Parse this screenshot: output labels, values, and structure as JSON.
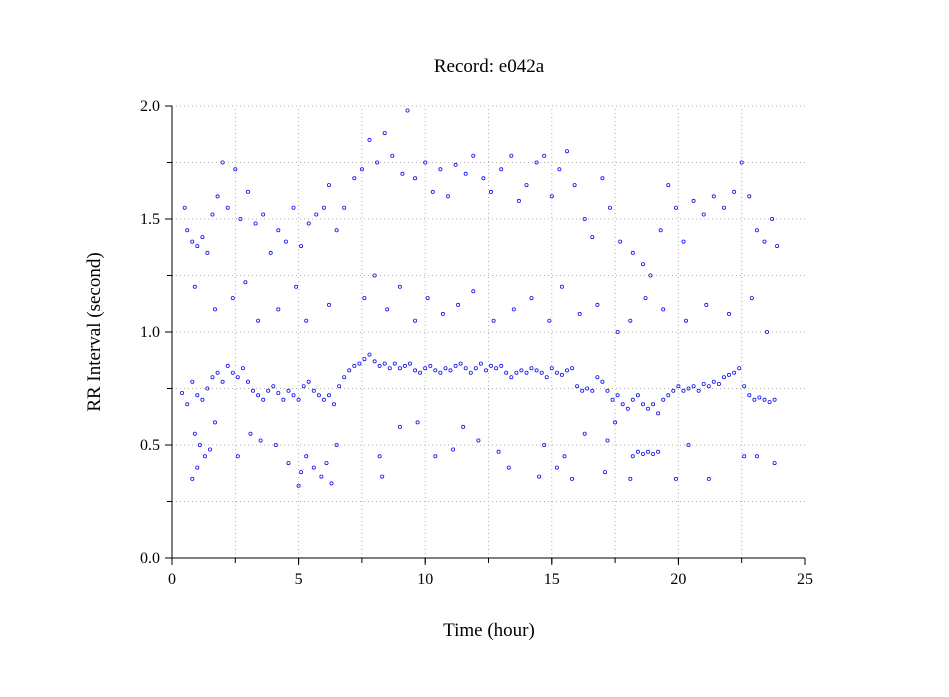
{
  "chart_data": {
    "type": "scatter",
    "title": "Record:  e042a",
    "xlabel": "Time (hour)",
    "ylabel": "RR Interval (second)",
    "xlim": [
      0,
      25
    ],
    "ylim": [
      0.0,
      2.0
    ],
    "xticks": [
      0,
      5,
      10,
      15,
      20,
      25
    ],
    "xtick_labels": [
      "0",
      "5",
      "10",
      "15",
      "20",
      "25"
    ],
    "yticks": [
      0.0,
      0.5,
      1.0,
      1.5,
      2.0
    ],
    "ytick_labels": [
      "0.0",
      "0.5",
      "1.0",
      "1.5",
      "2.0"
    ],
    "grid": true,
    "marker_color": "#1010ee",
    "series": [
      {
        "values": [
          [
            0.4,
            0.73
          ],
          [
            0.6,
            0.68
          ],
          [
            0.8,
            0.78
          ],
          [
            1.0,
            0.72
          ],
          [
            1.2,
            0.7
          ],
          [
            1.4,
            0.75
          ],
          [
            1.6,
            0.8
          ],
          [
            1.8,
            0.82
          ],
          [
            2.0,
            0.78
          ],
          [
            2.2,
            0.85
          ],
          [
            2.4,
            0.82
          ],
          [
            2.6,
            0.8
          ],
          [
            2.8,
            0.84
          ],
          [
            3.0,
            0.78
          ],
          [
            3.2,
            0.74
          ],
          [
            3.4,
            0.72
          ],
          [
            3.6,
            0.7
          ],
          [
            3.8,
            0.74
          ],
          [
            4.0,
            0.76
          ],
          [
            4.2,
            0.73
          ],
          [
            4.4,
            0.7
          ],
          [
            4.6,
            0.74
          ],
          [
            4.8,
            0.72
          ],
          [
            5.0,
            0.7
          ],
          [
            5.2,
            0.76
          ],
          [
            5.4,
            0.78
          ],
          [
            5.6,
            0.74
          ],
          [
            5.8,
            0.72
          ],
          [
            6.0,
            0.7
          ],
          [
            6.2,
            0.72
          ],
          [
            6.4,
            0.68
          ],
          [
            6.6,
            0.76
          ],
          [
            6.8,
            0.8
          ],
          [
            7.0,
            0.83
          ],
          [
            7.2,
            0.85
          ],
          [
            7.4,
            0.86
          ],
          [
            7.6,
            0.88
          ],
          [
            7.8,
            0.9
          ],
          [
            8.0,
            0.87
          ],
          [
            8.2,
            0.85
          ],
          [
            8.4,
            0.86
          ],
          [
            8.6,
            0.84
          ],
          [
            8.8,
            0.86
          ],
          [
            9.0,
            0.84
          ],
          [
            9.2,
            0.85
          ],
          [
            9.4,
            0.86
          ],
          [
            9.6,
            0.83
          ],
          [
            9.8,
            0.82
          ],
          [
            10.0,
            0.84
          ],
          [
            10.2,
            0.85
          ],
          [
            10.4,
            0.83
          ],
          [
            10.6,
            0.82
          ],
          [
            10.8,
            0.84
          ],
          [
            11.0,
            0.83
          ],
          [
            11.2,
            0.85
          ],
          [
            11.4,
            0.86
          ],
          [
            11.6,
            0.84
          ],
          [
            11.8,
            0.82
          ],
          [
            12.0,
            0.84
          ],
          [
            12.2,
            0.86
          ],
          [
            12.4,
            0.83
          ],
          [
            12.6,
            0.85
          ],
          [
            12.8,
            0.84
          ],
          [
            13.0,
            0.85
          ],
          [
            13.2,
            0.82
          ],
          [
            13.4,
            0.8
          ],
          [
            13.6,
            0.82
          ],
          [
            13.8,
            0.83
          ],
          [
            14.0,
            0.82
          ],
          [
            14.2,
            0.84
          ],
          [
            14.4,
            0.83
          ],
          [
            14.6,
            0.82
          ],
          [
            14.8,
            0.8
          ],
          [
            15.0,
            0.84
          ],
          [
            15.2,
            0.82
          ],
          [
            15.4,
            0.81
          ],
          [
            15.6,
            0.83
          ],
          [
            15.8,
            0.84
          ],
          [
            16.0,
            0.76
          ],
          [
            16.2,
            0.74
          ],
          [
            16.4,
            0.75
          ],
          [
            16.6,
            0.74
          ],
          [
            16.8,
            0.8
          ],
          [
            17.0,
            0.78
          ],
          [
            17.2,
            0.74
          ],
          [
            17.4,
            0.7
          ],
          [
            17.6,
            0.72
          ],
          [
            17.8,
            0.68
          ],
          [
            18.0,
            0.66
          ],
          [
            18.2,
            0.7
          ],
          [
            18.4,
            0.72
          ],
          [
            18.6,
            0.68
          ],
          [
            18.8,
            0.66
          ],
          [
            19.0,
            0.68
          ],
          [
            19.2,
            0.64
          ],
          [
            19.4,
            0.7
          ],
          [
            19.6,
            0.72
          ],
          [
            19.8,
            0.74
          ],
          [
            20.0,
            0.76
          ],
          [
            20.2,
            0.74
          ],
          [
            20.4,
            0.75
          ],
          [
            20.6,
            0.76
          ],
          [
            20.8,
            0.74
          ],
          [
            21.0,
            0.77
          ],
          [
            21.2,
            0.76
          ],
          [
            21.4,
            0.78
          ],
          [
            21.6,
            0.77
          ],
          [
            21.8,
            0.8
          ],
          [
            22.0,
            0.81
          ],
          [
            22.2,
            0.82
          ],
          [
            22.4,
            0.84
          ],
          [
            22.6,
            0.76
          ],
          [
            22.8,
            0.72
          ],
          [
            23.0,
            0.7
          ],
          [
            23.2,
            0.71
          ],
          [
            23.4,
            0.7
          ],
          [
            23.6,
            0.69
          ],
          [
            23.8,
            0.7
          ],
          [
            0.9,
            0.55
          ],
          [
            1.1,
            0.5
          ],
          [
            1.3,
            0.45
          ],
          [
            0.8,
            0.35
          ],
          [
            1.0,
            0.4
          ],
          [
            1.5,
            0.48
          ],
          [
            1.7,
            0.6
          ],
          [
            2.6,
            0.45
          ],
          [
            3.1,
            0.55
          ],
          [
            3.5,
            0.52
          ],
          [
            4.1,
            0.5
          ],
          [
            4.6,
            0.42
          ],
          [
            5.0,
            0.32
          ],
          [
            5.1,
            0.38
          ],
          [
            5.3,
            0.45
          ],
          [
            5.6,
            0.4
          ],
          [
            5.9,
            0.36
          ],
          [
            6.1,
            0.42
          ],
          [
            6.3,
            0.33
          ],
          [
            6.5,
            0.5
          ],
          [
            8.2,
            0.45
          ],
          [
            8.3,
            0.36
          ],
          [
            9.0,
            0.58
          ],
          [
            9.7,
            0.6
          ],
          [
            10.4,
            0.45
          ],
          [
            11.1,
            0.48
          ],
          [
            11.5,
            0.58
          ],
          [
            12.1,
            0.52
          ],
          [
            12.9,
            0.47
          ],
          [
            13.3,
            0.4
          ],
          [
            14.5,
            0.36
          ],
          [
            14.7,
            0.5
          ],
          [
            15.2,
            0.4
          ],
          [
            15.5,
            0.45
          ],
          [
            15.8,
            0.35
          ],
          [
            16.3,
            0.55
          ],
          [
            17.1,
            0.38
          ],
          [
            17.2,
            0.52
          ],
          [
            17.5,
            0.6
          ],
          [
            18.2,
            0.45
          ],
          [
            18.4,
            0.47
          ],
          [
            18.6,
            0.46
          ],
          [
            18.8,
            0.47
          ],
          [
            19.0,
            0.46
          ],
          [
            19.2,
            0.47
          ],
          [
            18.1,
            0.35
          ],
          [
            19.9,
            0.35
          ],
          [
            20.4,
            0.5
          ],
          [
            21.2,
            0.35
          ],
          [
            22.6,
            0.45
          ],
          [
            23.1,
            0.45
          ],
          [
            23.8,
            0.42
          ],
          [
            0.5,
            1.55
          ],
          [
            0.6,
            1.45
          ],
          [
            0.8,
            1.4
          ],
          [
            1.0,
            1.38
          ],
          [
            1.2,
            1.42
          ],
          [
            1.4,
            1.35
          ],
          [
            1.6,
            1.52
          ],
          [
            1.8,
            1.6
          ],
          [
            2.0,
            1.75
          ],
          [
            2.2,
            1.55
          ],
          [
            2.5,
            1.72
          ],
          [
            2.7,
            1.5
          ],
          [
            3.0,
            1.62
          ],
          [
            3.3,
            1.48
          ],
          [
            3.6,
            1.52
          ],
          [
            3.9,
            1.35
          ],
          [
            4.2,
            1.45
          ],
          [
            4.5,
            1.4
          ],
          [
            4.8,
            1.55
          ],
          [
            5.1,
            1.38
          ],
          [
            5.4,
            1.48
          ],
          [
            5.7,
            1.52
          ],
          [
            6.0,
            1.55
          ],
          [
            6.2,
            1.65
          ],
          [
            6.5,
            1.45
          ],
          [
            6.8,
            1.55
          ],
          [
            7.2,
            1.68
          ],
          [
            7.5,
            1.72
          ],
          [
            7.8,
            1.85
          ],
          [
            8.1,
            1.75
          ],
          [
            8.4,
            1.88
          ],
          [
            8.7,
            1.78
          ],
          [
            9.1,
            1.7
          ],
          [
            9.3,
            1.98
          ],
          [
            9.6,
            1.68
          ],
          [
            10.0,
            1.75
          ],
          [
            10.3,
            1.62
          ],
          [
            10.6,
            1.72
          ],
          [
            10.9,
            1.6
          ],
          [
            11.2,
            1.74
          ],
          [
            11.6,
            1.7
          ],
          [
            11.9,
            1.78
          ],
          [
            12.3,
            1.68
          ],
          [
            12.6,
            1.62
          ],
          [
            13.0,
            1.72
          ],
          [
            13.4,
            1.78
          ],
          [
            13.7,
            1.58
          ],
          [
            14.0,
            1.65
          ],
          [
            14.4,
            1.75
          ],
          [
            14.7,
            1.78
          ],
          [
            15.0,
            1.6
          ],
          [
            15.3,
            1.72
          ],
          [
            15.6,
            1.8
          ],
          [
            15.9,
            1.65
          ],
          [
            16.3,
            1.5
          ],
          [
            16.6,
            1.42
          ],
          [
            17.0,
            1.68
          ],
          [
            17.3,
            1.55
          ],
          [
            17.7,
            1.4
          ],
          [
            18.2,
            1.35
          ],
          [
            18.6,
            1.3
          ],
          [
            18.9,
            1.25
          ],
          [
            19.3,
            1.45
          ],
          [
            19.6,
            1.65
          ],
          [
            19.9,
            1.55
          ],
          [
            20.2,
            1.4
          ],
          [
            20.6,
            1.58
          ],
          [
            21.0,
            1.52
          ],
          [
            21.4,
            1.6
          ],
          [
            21.8,
            1.55
          ],
          [
            22.2,
            1.62
          ],
          [
            22.5,
            1.75
          ],
          [
            22.8,
            1.6
          ],
          [
            23.1,
            1.45
          ],
          [
            23.4,
            1.4
          ],
          [
            23.7,
            1.5
          ],
          [
            23.9,
            1.38
          ],
          [
            0.9,
            1.2
          ],
          [
            1.7,
            1.1
          ],
          [
            2.4,
            1.15
          ],
          [
            2.9,
            1.22
          ],
          [
            3.4,
            1.05
          ],
          [
            4.2,
            1.1
          ],
          [
            4.9,
            1.2
          ],
          [
            5.3,
            1.05
          ],
          [
            6.2,
            1.12
          ],
          [
            7.6,
            1.15
          ],
          [
            8.0,
            1.25
          ],
          [
            8.5,
            1.1
          ],
          [
            9.0,
            1.2
          ],
          [
            9.6,
            1.05
          ],
          [
            10.1,
            1.15
          ],
          [
            10.7,
            1.08
          ],
          [
            11.3,
            1.12
          ],
          [
            11.9,
            1.18
          ],
          [
            12.7,
            1.05
          ],
          [
            13.5,
            1.1
          ],
          [
            14.2,
            1.15
          ],
          [
            14.9,
            1.05
          ],
          [
            15.4,
            1.2
          ],
          [
            16.1,
            1.08
          ],
          [
            16.8,
            1.12
          ],
          [
            17.6,
            1.0
          ],
          [
            18.1,
            1.05
          ],
          [
            18.7,
            1.15
          ],
          [
            19.4,
            1.1
          ],
          [
            20.3,
            1.05
          ],
          [
            21.1,
            1.12
          ],
          [
            22.0,
            1.08
          ],
          [
            22.9,
            1.15
          ],
          [
            23.5,
            1.0
          ]
        ]
      }
    ]
  }
}
